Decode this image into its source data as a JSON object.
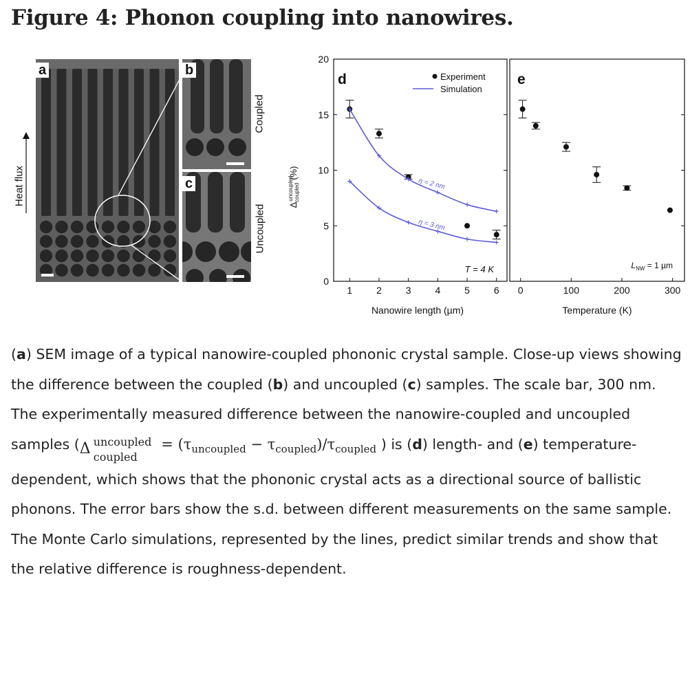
{
  "figure": {
    "title": "Figure 4: Phonon coupling into nanowires."
  },
  "sem_panels": {
    "a_label": "a",
    "b_label": "b",
    "c_label": "c",
    "heat_flux": "Heat flux",
    "coupled": "Coupled",
    "uncoupled": "Uncoupled"
  },
  "chart_data": [
    {
      "type": "scatter",
      "panel_label": "d",
      "xlabel": "Nanowire length (µm)",
      "ylabel": "Δ uncoupled coupled (%)",
      "ylabel_main": "Δ",
      "ylabel_sup": "uncoupled",
      "ylabel_sub": "coupled",
      "ylabel_unit": "(%)",
      "xlim": [
        0.9,
        6.1
      ],
      "ylim": [
        0,
        20
      ],
      "xticks": [
        1,
        2,
        3,
        4,
        5,
        6
      ],
      "yticks": [
        0,
        5,
        10,
        15,
        20
      ],
      "annotation": "T = 4 K",
      "legend": [
        "Experiment",
        "Simulation"
      ],
      "legend_position": "top-right",
      "series": [
        {
          "name": "Experiment",
          "kind": "points",
          "color": "#111111",
          "x": [
            1,
            2,
            3,
            5,
            6
          ],
          "y": [
            15.5,
            13.3,
            9.4,
            5.0,
            4.2
          ],
          "err": [
            0.8,
            0.4,
            0.2,
            0.1,
            0.4
          ]
        },
        {
          "name": "Simulation",
          "kind": "line",
          "label": "η = 2 nm",
          "color": "#5b5bd6",
          "x": [
            1,
            2,
            3,
            4,
            5,
            6
          ],
          "y": [
            15.5,
            11.3,
            9.2,
            8.0,
            6.9,
            6.3
          ]
        },
        {
          "name": "Simulation",
          "kind": "line",
          "label": "η = 3 nm",
          "color": "#5b5bd6",
          "x": [
            1,
            2,
            3,
            4,
            5,
            6
          ],
          "y": [
            9.0,
            6.6,
            5.3,
            4.5,
            3.8,
            3.5
          ]
        }
      ]
    },
    {
      "type": "scatter",
      "panel_label": "e",
      "xlabel": "Temperature (K)",
      "xlim": [
        -5,
        310
      ],
      "ylim": [
        0,
        20
      ],
      "xticks": [
        0,
        100,
        200,
        300
      ],
      "annotation": "L_NW = 1 µm",
      "annotation_main": "L",
      "annotation_sub": "NW",
      "annotation_rest": " = 1 µm",
      "series": [
        {
          "name": "Experiment",
          "kind": "points",
          "color": "#111111",
          "x": [
            4,
            30,
            90,
            150,
            210,
            295
          ],
          "y": [
            15.5,
            14.0,
            12.1,
            9.6,
            8.4,
            6.4
          ],
          "err": [
            0.8,
            0.3,
            0.4,
            0.7,
            0.2,
            0.1
          ]
        }
      ]
    }
  ],
  "caption": {
    "a": "a",
    "t1": ") SEM image of a typical nanowire-coupled phononic crystal sample. Close-up views showing the difference between the coupled (",
    "b": "b",
    "t2": ") and uncoupled (",
    "c": "c",
    "t3": ") samples. The scale bar, 300 nm. The experimentally measured difference between the nanowire-coupled and uncoupled samples (",
    "m_delta": "Δ",
    "m_sup": "uncoupled",
    "m_sub": "coupled",
    "m_eq": " = (τ",
    "m_s1": "uncoupled",
    "m_minus": " − τ",
    "m_s2": "coupled",
    "m_div": ")/τ",
    "m_s3": "coupled",
    "t4": ") is (",
    "d": "d",
    "t5": ") length- and (",
    "e": "e",
    "t6": ") temperature-dependent, which shows that the phononic crystal acts as a directional source of ballistic phonons. The error bars show the s.d. between different measurements on the same sample. The Monte Carlo simulations, represented by the lines, predict similar trends and show that the relative difference is roughness-dependent."
  }
}
